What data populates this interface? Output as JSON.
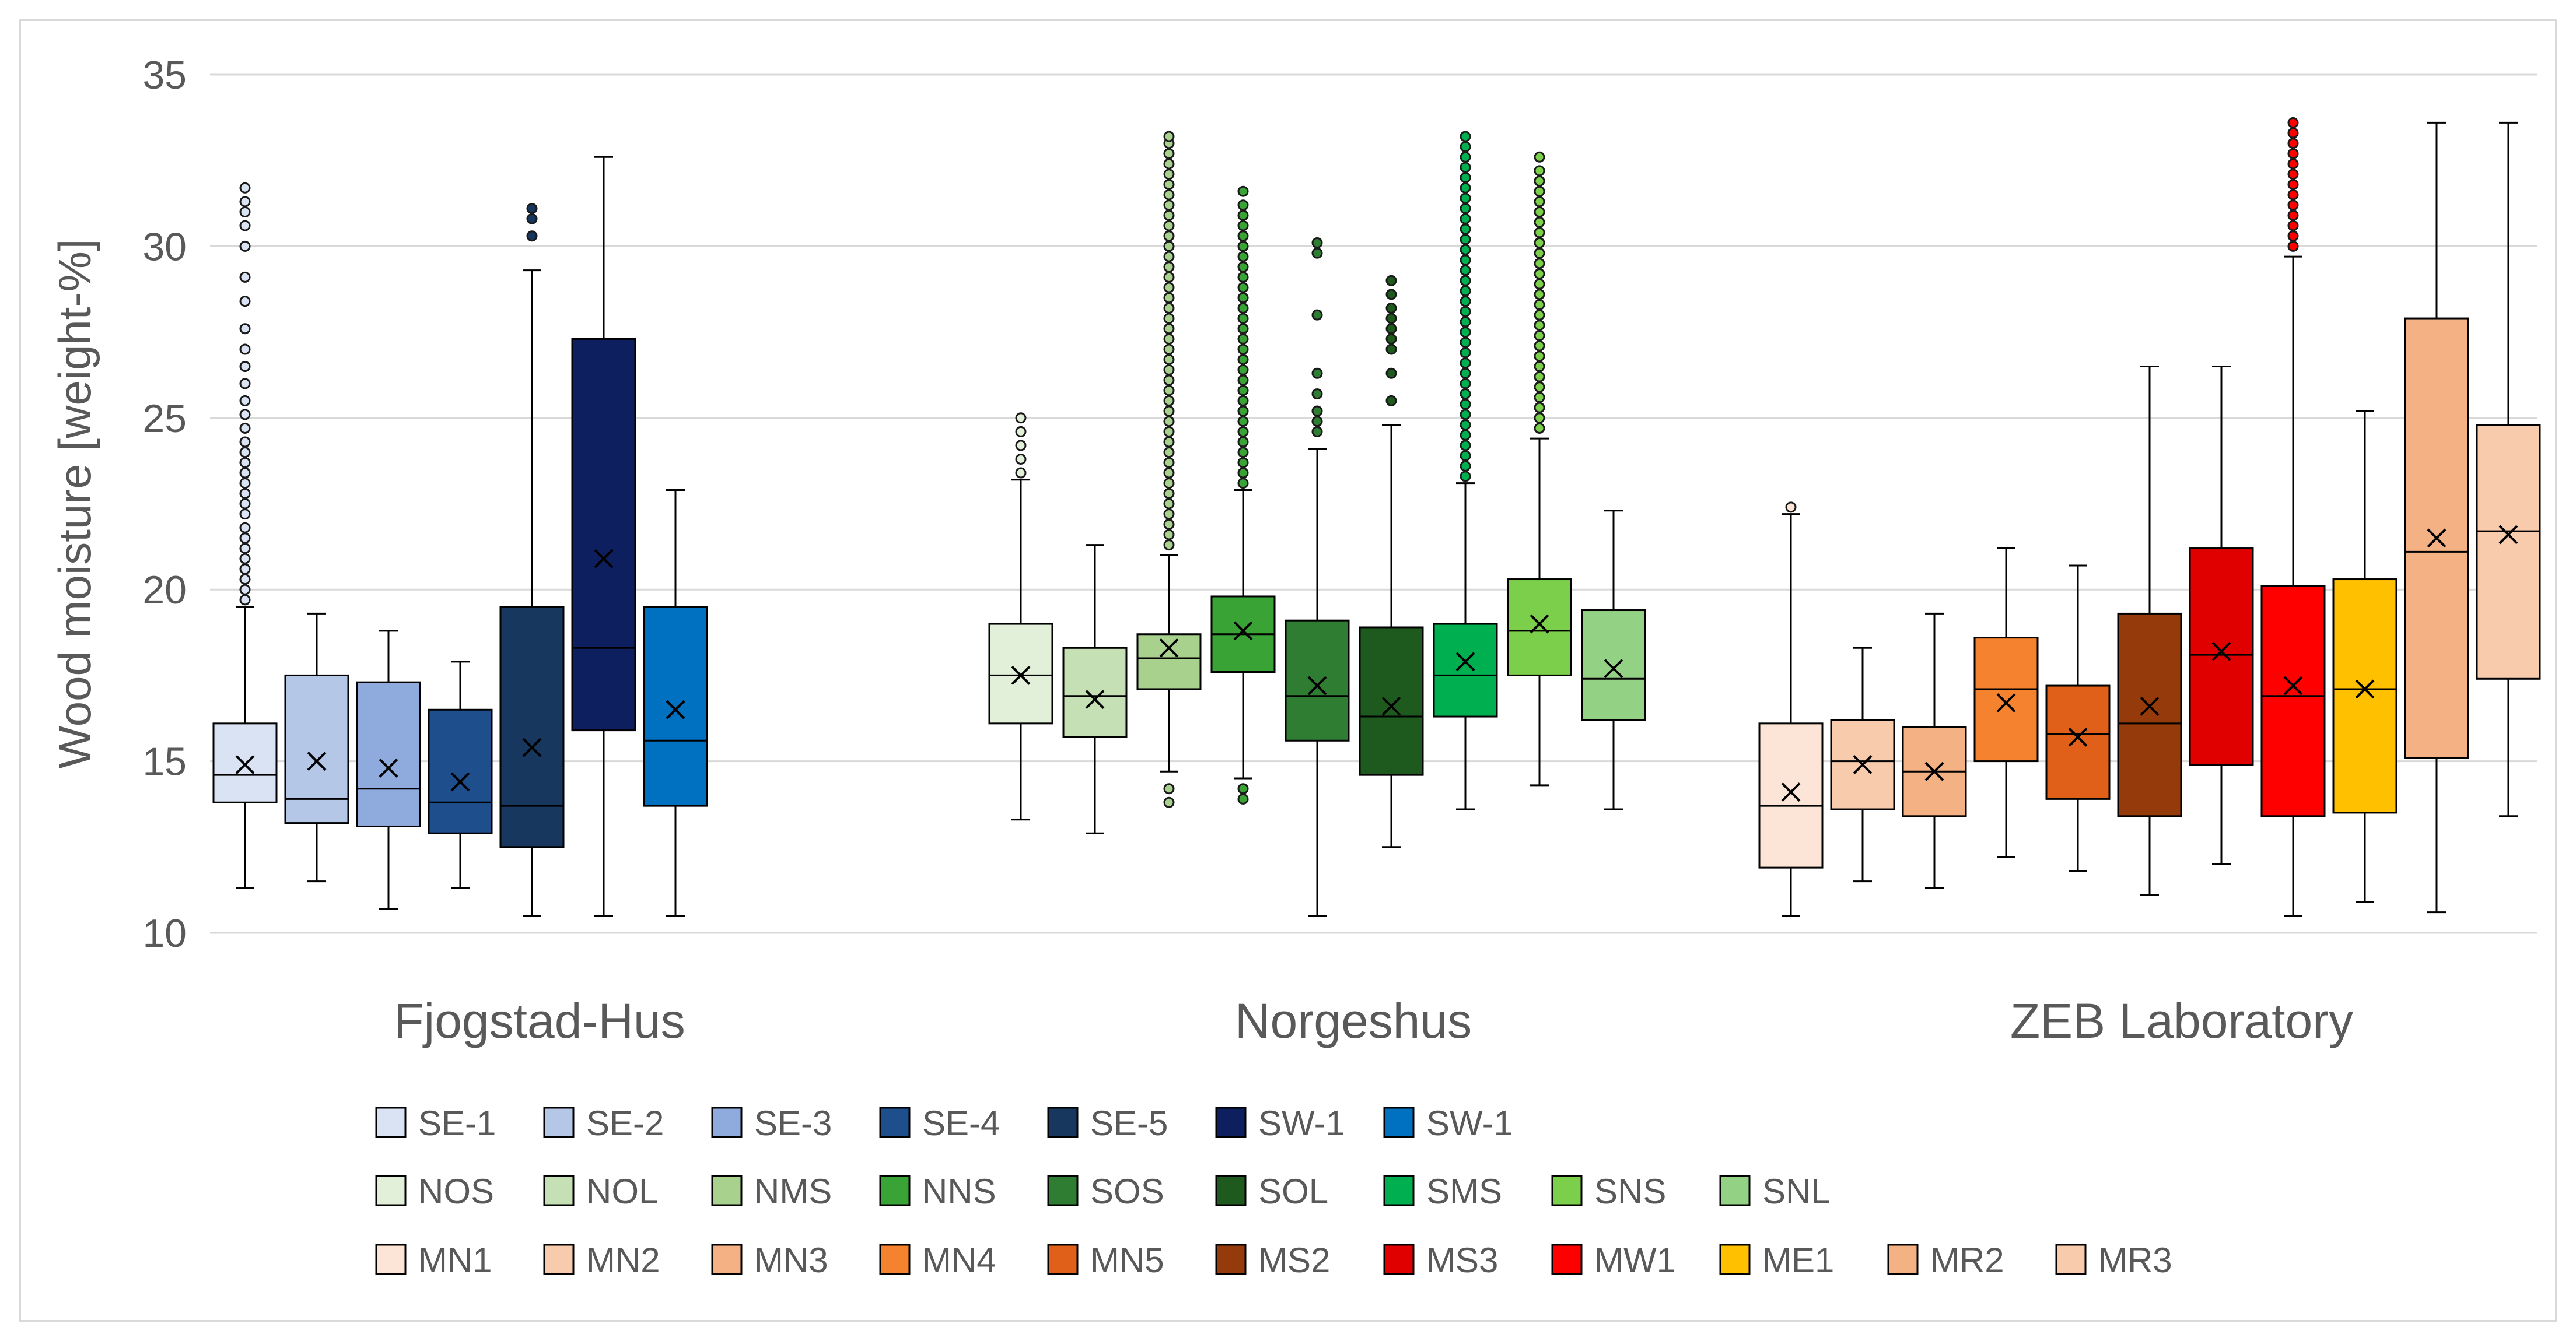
{
  "chart_data": {
    "type": "box",
    "ylabel": "Wood moisture [weight-%]",
    "ylim": [
      10,
      35
    ],
    "yticks": [
      10,
      15,
      20,
      25,
      30,
      35
    ],
    "grid": true,
    "legend_position": "bottom",
    "groups": [
      {
        "name": "Fjogstad-Hus",
        "series": [
          {
            "name": "SE-1",
            "color": "#dae3f3",
            "whisker_low": 11.3,
            "q1": 13.8,
            "median": 14.6,
            "q3": 16.1,
            "whisker_high": 19.5,
            "mean": 14.9,
            "outliers": [
              19.7,
              20.0,
              20.3,
              20.6,
              20.9,
              21.2,
              21.5,
              21.8,
              22.2,
              22.5,
              22.8,
              23.1,
              23.4,
              23.7,
              24.0,
              24.3,
              24.7,
              25.1,
              25.5,
              26.0,
              26.5,
              27.0,
              27.6,
              28.4,
              29.1,
              30.0,
              30.6,
              31.0,
              31.3,
              31.7
            ]
          },
          {
            "name": "SE-2",
            "color": "#b4c7e7",
            "whisker_low": 11.5,
            "q1": 13.2,
            "median": 13.9,
            "q3": 17.5,
            "whisker_high": 19.3,
            "mean": 15.0,
            "outliers": []
          },
          {
            "name": "SE-3",
            "color": "#8faadc",
            "whisker_low": 10.7,
            "q1": 13.1,
            "median": 14.2,
            "q3": 17.3,
            "whisker_high": 18.8,
            "mean": 14.8,
            "outliers": []
          },
          {
            "name": "SE-4",
            "color": "#1e4e8c",
            "whisker_low": 11.3,
            "q1": 12.9,
            "median": 13.8,
            "q3": 16.5,
            "whisker_high": 17.9,
            "mean": 14.4,
            "outliers": []
          },
          {
            "name": "SE-5",
            "color": "#17375e",
            "whisker_low": 10.5,
            "q1": 12.5,
            "median": 13.7,
            "q3": 19.5,
            "whisker_high": 29.3,
            "mean": 15.4,
            "outliers": [
              30.3,
              30.8,
              31.1
            ]
          },
          {
            "name": "SW-1",
            "color": "#0d1f5e",
            "whisker_low": 10.5,
            "q1": 15.9,
            "median": 18.3,
            "q3": 27.3,
            "whisker_high": 32.6,
            "mean": 20.9,
            "outliers": []
          },
          {
            "name": "SW-1",
            "color": "#0070c0",
            "whisker_low": 10.5,
            "q1": 13.7,
            "median": 15.6,
            "q3": 19.5,
            "whisker_high": 22.9,
            "mean": 16.5,
            "outliers": []
          }
        ]
      },
      {
        "name": "Norgeshus",
        "series": [
          {
            "name": "NOS",
            "color": "#e2f0d9",
            "whisker_low": 13.3,
            "q1": 16.1,
            "median": 17.5,
            "q3": 19.0,
            "whisker_high": 23.2,
            "mean": 17.5,
            "outliers": [
              23.4,
              23.8,
              24.2,
              24.6,
              25.0
            ]
          },
          {
            "name": "NOL",
            "color": "#c5e0b4",
            "whisker_low": 12.9,
            "q1": 15.7,
            "median": 16.9,
            "q3": 18.3,
            "whisker_high": 21.3,
            "mean": 16.8,
            "outliers": []
          },
          {
            "name": "NMS",
            "color": "#a9d18e",
            "whisker_low": 14.7,
            "q1": 17.1,
            "median": 18.0,
            "q3": 18.7,
            "whisker_high": 21.0,
            "mean": 18.3,
            "outliers": [
              13.8,
              14.2,
              21.3,
              21.6,
              21.9,
              22.2,
              22.5,
              22.8,
              23.1,
              23.4,
              23.7,
              24.0,
              24.3,
              24.6,
              24.9,
              25.2,
              25.5,
              25.8,
              26.1,
              26.4,
              26.7,
              27.0,
              27.3,
              27.6,
              27.9,
              28.2,
              28.5,
              28.8,
              29.1,
              29.4,
              29.7,
              30.0,
              30.3,
              30.6,
              30.9,
              31.2,
              31.5,
              31.8,
              32.1,
              32.4,
              32.7,
              33.0,
              33.2
            ]
          },
          {
            "name": "NNS",
            "color": "#3aa335",
            "whisker_low": 14.5,
            "q1": 17.6,
            "median": 18.7,
            "q3": 19.8,
            "whisker_high": 22.9,
            "mean": 18.8,
            "outliers": [
              13.9,
              14.2,
              23.1,
              23.4,
              23.7,
              24.0,
              24.3,
              24.6,
              24.9,
              25.2,
              25.5,
              25.8,
              26.1,
              26.4,
              26.7,
              27.0,
              27.3,
              27.6,
              27.9,
              28.2,
              28.5,
              28.8,
              29.1,
              29.4,
              29.7,
              30.0,
              30.3,
              30.6,
              30.9,
              31.2,
              31.6
            ]
          },
          {
            "name": "SOS",
            "color": "#2e7d32",
            "whisker_low": 10.5,
            "q1": 15.6,
            "median": 16.9,
            "q3": 19.1,
            "whisker_high": 24.1,
            "mean": 17.2,
            "outliers": [
              24.6,
              24.9,
              25.2,
              25.7,
              26.3,
              28.0,
              29.8,
              30.1
            ]
          },
          {
            "name": "SOL",
            "color": "#1e5a1e",
            "whisker_low": 12.5,
            "q1": 14.6,
            "median": 16.3,
            "q3": 18.9,
            "whisker_high": 24.8,
            "mean": 16.6,
            "outliers": [
              25.5,
              26.3,
              27.0,
              27.3,
              27.6,
              27.9,
              28.2,
              28.6,
              29.0
            ]
          },
          {
            "name": "SMS",
            "color": "#00b050",
            "whisker_low": 13.6,
            "q1": 16.3,
            "median": 17.5,
            "q3": 19.0,
            "whisker_high": 23.1,
            "mean": 17.9,
            "outliers": [
              23.3,
              23.6,
              23.9,
              24.2,
              24.5,
              24.8,
              25.1,
              25.4,
              25.7,
              26.0,
              26.3,
              26.6,
              26.9,
              27.2,
              27.5,
              27.8,
              28.1,
              28.4,
              28.7,
              29.0,
              29.3,
              29.6,
              29.9,
              30.2,
              30.5,
              30.8,
              31.1,
              31.4,
              31.7,
              32.0,
              32.3,
              32.6,
              32.9,
              33.2
            ]
          },
          {
            "name": "SNS",
            "color": "#7ccf4a",
            "whisker_low": 14.3,
            "q1": 17.5,
            "median": 18.8,
            "q3": 20.3,
            "whisker_high": 24.4,
            "mean": 19.0,
            "outliers": [
              24.7,
              25.0,
              25.3,
              25.6,
              25.9,
              26.2,
              26.5,
              26.8,
              27.1,
              27.4,
              27.7,
              28.0,
              28.3,
              28.6,
              28.9,
              29.2,
              29.5,
              29.8,
              30.1,
              30.4,
              30.7,
              31.0,
              31.3,
              31.6,
              31.9,
              32.2,
              32.6
            ]
          },
          {
            "name": "SNL",
            "color": "#93d184",
            "whisker_low": 13.6,
            "q1": 16.2,
            "median": 17.4,
            "q3": 19.4,
            "whisker_high": 22.3,
            "mean": 17.7,
            "outliers": []
          }
        ]
      },
      {
        "name": "ZEB Laboratory",
        "series": [
          {
            "name": "MN1",
            "color": "#fce4d6",
            "whisker_low": 10.5,
            "q1": 11.9,
            "median": 13.7,
            "q3": 16.1,
            "whisker_high": 22.2,
            "mean": 14.1,
            "outliers": [
              22.4
            ]
          },
          {
            "name": "MN2",
            "color": "#f8cbad",
            "whisker_low": 11.5,
            "q1": 13.6,
            "median": 15.0,
            "q3": 16.2,
            "whisker_high": 18.3,
            "mean": 14.9,
            "outliers": []
          },
          {
            "name": "MN3",
            "color": "#f4b183",
            "whisker_low": 11.3,
            "q1": 13.4,
            "median": 14.7,
            "q3": 16.0,
            "whisker_high": 19.3,
            "mean": 14.7,
            "outliers": []
          },
          {
            "name": "MN4",
            "color": "#f4822f",
            "whisker_low": 12.2,
            "q1": 15.0,
            "median": 17.1,
            "q3": 18.6,
            "whisker_high": 21.2,
            "mean": 16.7,
            "outliers": []
          },
          {
            "name": "MN5",
            "color": "#e0601a",
            "whisker_low": 11.8,
            "q1": 13.9,
            "median": 15.8,
            "q3": 17.2,
            "whisker_high": 20.7,
            "mean": 15.7,
            "outliers": []
          },
          {
            "name": "MS2",
            "color": "#953a0a",
            "whisker_low": 11.1,
            "q1": 13.4,
            "median": 16.1,
            "q3": 19.3,
            "whisker_high": 26.5,
            "mean": 16.6,
            "outliers": []
          },
          {
            "name": "MS3",
            "color": "#e00000",
            "whisker_low": 12.0,
            "q1": 14.9,
            "median": 18.1,
            "q3": 21.2,
            "whisker_high": 26.5,
            "mean": 18.2,
            "outliers": []
          },
          {
            "name": "MW1",
            "color": "#ff0000",
            "whisker_low": 10.5,
            "q1": 13.4,
            "median": 16.9,
            "q3": 20.1,
            "whisker_high": 29.7,
            "mean": 17.2,
            "outliers": [
              30.0,
              30.3,
              30.6,
              30.9,
              31.2,
              31.5,
              31.8,
              32.1,
              32.4,
              32.7,
              33.0,
              33.3,
              33.6
            ]
          },
          {
            "name": "ME1",
            "color": "#ffc000",
            "whisker_low": 10.9,
            "q1": 13.5,
            "median": 17.1,
            "q3": 20.3,
            "whisker_high": 25.2,
            "mean": 17.1,
            "outliers": []
          },
          {
            "name": "MR2",
            "color": "#f4b183",
            "whisker_low": 10.6,
            "q1": 15.1,
            "median": 21.1,
            "q3": 27.9,
            "whisker_high": 33.6,
            "mean": 21.5,
            "outliers": []
          },
          {
            "name": "MR3",
            "color": "#f8cbad",
            "whisker_low": 13.4,
            "q1": 17.4,
            "median": 21.7,
            "q3": 24.8,
            "whisker_high": 33.6,
            "mean": 21.6,
            "outliers": []
          }
        ]
      }
    ]
  }
}
